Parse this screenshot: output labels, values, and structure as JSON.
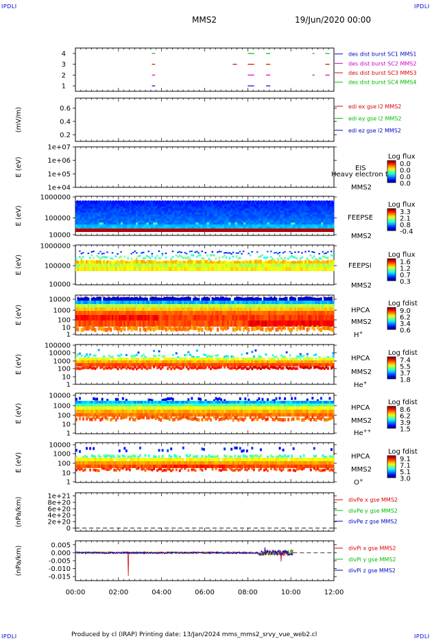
{
  "header": {
    "corner_label": "IPDLI",
    "spacecraft": "MMS2",
    "datetime": "19/Jun/2020 00:00"
  },
  "footer": {
    "credits": "Produced by cl (IRAP)    Printing date: 13/Jan/2024    mms_mms2_srvy_vue_web2.cl"
  },
  "colors": {
    "red": "#dd0000",
    "green": "#00bb00",
    "blue": "#0000cc",
    "magenta": "#cc00cc",
    "frame": "#000000"
  },
  "chart_data": [
    {
      "type": "timeline",
      "name": "burst",
      "ylim": [
        0.5,
        4.5
      ],
      "yticks": [
        "1",
        "2",
        "3",
        "4"
      ],
      "legend": [
        {
          "text": "des dist burst SC1 MMS1",
          "color": "#0000cc"
        },
        {
          "text": "des dist burst SC2 MMS2",
          "color": "#cc00cc"
        },
        {
          "text": "des dist burst SC3 MMS3",
          "color": "#dd0000"
        },
        {
          "text": "des dist burst SC4 MMS4",
          "color": "#00bb00"
        }
      ],
      "segments_hours": [
        {
          "row": 4,
          "from": 3.55,
          "to": 3.7
        },
        {
          "row": 4,
          "from": 8.0,
          "to": 8.3
        },
        {
          "row": 4,
          "from": 8.85,
          "to": 9.05
        },
        {
          "row": 4,
          "from": 11.0,
          "to": 11.1
        },
        {
          "row": 4,
          "from": 11.6,
          "to": 11.8
        },
        {
          "row": 3,
          "from": 3.55,
          "to": 3.7
        },
        {
          "row": 3,
          "from": 7.3,
          "to": 7.5
        },
        {
          "row": 3,
          "from": 8.0,
          "to": 8.3
        },
        {
          "row": 3,
          "from": 8.85,
          "to": 9.05
        },
        {
          "row": 3,
          "from": 11.6,
          "to": 11.8
        },
        {
          "row": 2,
          "from": 3.55,
          "to": 3.7
        },
        {
          "row": 2,
          "from": 8.0,
          "to": 8.3
        },
        {
          "row": 2,
          "from": 8.85,
          "to": 9.05
        },
        {
          "row": 2,
          "from": 11.0,
          "to": 11.1
        },
        {
          "row": 2,
          "from": 11.6,
          "to": 11.8
        },
        {
          "row": 1,
          "from": 3.55,
          "to": 3.7
        },
        {
          "row": 1,
          "from": 8.0,
          "to": 8.3
        },
        {
          "row": 1,
          "from": 8.85,
          "to": 9.05
        }
      ]
    },
    {
      "type": "line",
      "name": "edi",
      "ylabel": "(mV/m)",
      "ylim": [
        0.1,
        0.75
      ],
      "yticks": [
        "0.2",
        "0.4",
        "0.6"
      ],
      "legend": [
        {
          "text": "edi ex gse l2 MMS2",
          "color": "#dd0000"
        },
        {
          "text": "edi ey gse l2 MMS2",
          "color": "#00bb00"
        },
        {
          "text": "edi ez gse l2 MMS2",
          "color": "#0000cc"
        }
      ]
    },
    {
      "type": "heatmap",
      "name": "eis",
      "ylabel": "E (eV)",
      "yticks": [
        "1e+07",
        "1e+06",
        "1e+05",
        "1e+04"
      ],
      "instrument": [
        "EIS",
        "MMS2"
      ],
      "overlap_text": "Heavy electron to",
      "colorbar": {
        "title": "Log flux",
        "ticks": [
          "0.0",
          "0.0",
          "0.0",
          "0.0"
        ],
        "scale": "jet"
      }
    },
    {
      "type": "heatmap",
      "name": "feeps-e",
      "ylabel": "E (eV)",
      "yticks": [
        "1000000",
        "100000",
        "10000"
      ],
      "instrument": [
        "FEEPSE",
        "MMS2"
      ],
      "colorbar": {
        "title": "Log flux",
        "ticks": [
          "3.3",
          "2.1",
          "0.8",
          "-0.4"
        ],
        "scale": "jet"
      }
    },
    {
      "type": "heatmap",
      "name": "feeps-i",
      "ylabel": "E (eV)",
      "yticks": [
        "1000000",
        "100000",
        "10000"
      ],
      "instrument": [
        "FEEPSI",
        "MMS2"
      ],
      "colorbar": {
        "title": "Log flux",
        "ticks": [
          "1.6",
          "1.2",
          "0.7",
          "0.3"
        ],
        "scale": "jet"
      }
    },
    {
      "type": "heatmap",
      "name": "hpca-h",
      "ylabel": "E (eV)",
      "yticks": [
        "10000",
        "1000",
        "100",
        "10",
        "1"
      ],
      "instrument": [
        "HPCA",
        "MMS2",
        "H+"
      ],
      "colorbar": {
        "title": "Log fdist",
        "ticks": [
          "9.0",
          "6.2",
          "3.4",
          "0.6"
        ],
        "scale": "jet"
      }
    },
    {
      "type": "heatmap",
      "name": "hpca-he1",
      "ylabel": "E (eV)",
      "yticks": [
        "100000",
        "10000",
        "1000",
        "100",
        "10",
        "1"
      ],
      "instrument": [
        "HPCA",
        "MMS2",
        "He+"
      ],
      "colorbar": {
        "title": "Log fdist",
        "ticks": [
          "7.4",
          "5.5",
          "3.7",
          "1.8"
        ],
        "scale": "jet"
      }
    },
    {
      "type": "heatmap",
      "name": "hpca-he2",
      "ylabel": "E (eV)",
      "yticks": [
        "10000",
        "1000",
        "100",
        "10",
        "1"
      ],
      "instrument": [
        "HPCA",
        "MMS2",
        "He++"
      ],
      "colorbar": {
        "title": "Log fdist",
        "ticks": [
          "8.6",
          "6.2",
          "3.9",
          "1.5"
        ],
        "scale": "jet"
      }
    },
    {
      "type": "heatmap",
      "name": "hpca-o",
      "ylabel": "E (eV)",
      "yticks": [
        "10000",
        "1000",
        "100",
        "10",
        "1"
      ],
      "instrument": [
        "HPCA",
        "MMS2",
        "O+"
      ],
      "colorbar": {
        "title": "Log fdist",
        "ticks": [
          "9.1",
          "7.1",
          "5.1",
          "3.0"
        ],
        "scale": "jet"
      }
    },
    {
      "type": "line",
      "name": "divpe",
      "ylabel": "(nPa/km)",
      "ylim": [
        -1e+20,
        1.1e+21
      ],
      "yticks": [
        "1e+21",
        "8e+20",
        "6e+20",
        "4e+20",
        "2e+20",
        "0"
      ],
      "legend": [
        {
          "text": "divPe x gse MMS2",
          "color": "#dd0000"
        },
        {
          "text": "divPe y gse MMS2",
          "color": "#00bb00"
        },
        {
          "text": "divPe z gse MMS2",
          "color": "#0000cc"
        }
      ]
    },
    {
      "type": "line",
      "name": "divpi",
      "ylabel": "(nPa/km)",
      "ylim": [
        -0.0175,
        0.0075
      ],
      "yticks": [
        "0.005",
        "0.000",
        "-0.005",
        "-0.010",
        "-0.015"
      ],
      "legend": [
        {
          "text": "divPi x gse MMS2",
          "color": "#dd0000"
        },
        {
          "text": "divPi y gse MMS2",
          "color": "#00bb00"
        },
        {
          "text": "divPi z gse MMS2",
          "color": "#0000cc"
        }
      ],
      "data_end_hour": 10.1
    }
  ],
  "time_axis": {
    "xlim_hours": [
      0,
      12
    ],
    "tick_labels": [
      "00:00",
      "02:00",
      "04:00",
      "06:00",
      "08:00",
      "10:00",
      "12:00"
    ]
  }
}
